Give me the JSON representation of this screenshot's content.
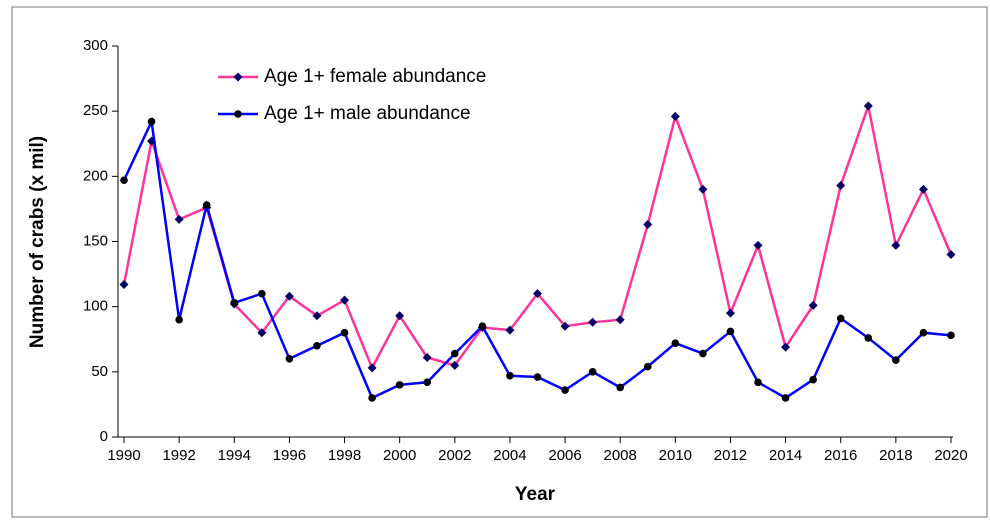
{
  "chart_data": {
    "type": "line",
    "x_label": "Year",
    "y_label": "Number of crabs (x mil)",
    "x": [
      1990,
      1991,
      1992,
      1993,
      1994,
      1995,
      1996,
      1997,
      1998,
      1999,
      2000,
      2001,
      2002,
      2003,
      2004,
      2005,
      2006,
      2007,
      2008,
      2009,
      2010,
      2011,
      2012,
      2013,
      2014,
      2015,
      2016,
      2017,
      2018,
      2019,
      2020
    ],
    "series": [
      {
        "name": "Age 1+ female abundance",
        "color": "#ff3399",
        "marker_color": "#000066",
        "marker": "diamond",
        "values": [
          117,
          227,
          167,
          176,
          102,
          80,
          108,
          93,
          105,
          53,
          93,
          61,
          55,
          84,
          82,
          110,
          85,
          88,
          90,
          163,
          246,
          190,
          95,
          147,
          69,
          101,
          193,
          254,
          147,
          190,
          140
        ]
      },
      {
        "name": "Age 1+ male abundance",
        "color": "#0000ff",
        "marker_color": "#000000",
        "marker": "circle",
        "values": [
          197,
          242,
          90,
          178,
          103,
          110,
          60,
          70,
          80,
          30,
          40,
          42,
          64,
          85,
          47,
          46,
          36,
          50,
          38,
          54,
          72,
          64,
          81,
          42,
          30,
          44,
          91,
          76,
          59,
          80,
          78
        ]
      }
    ],
    "xlim": [
      1990,
      2020
    ],
    "xticks": [
      1990,
      1992,
      1994,
      1996,
      1998,
      2000,
      2002,
      2004,
      2006,
      2008,
      2010,
      2012,
      2014,
      2016,
      2018,
      2020
    ],
    "ylim": [
      0,
      300
    ],
    "yticks": [
      0,
      50,
      100,
      150,
      200,
      250,
      300
    ],
    "grid": false,
    "legend_position": "upper-left"
  }
}
